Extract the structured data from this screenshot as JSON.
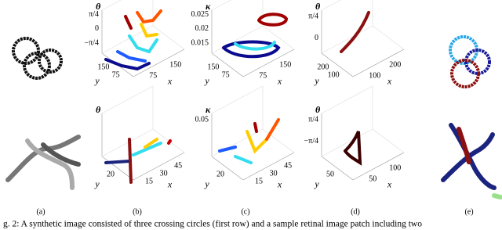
{
  "figure": {
    "plots": [
      {
        "z_label": "θ",
        "z_ticks": [
          "π/4",
          "0",
          "−π/4"
        ],
        "x_label": "x",
        "x_ticks": [
          "75",
          "150"
        ],
        "y_label": "y",
        "y_ticks": [
          "150",
          "75"
        ]
      },
      {
        "z_label": "κ",
        "z_ticks": [
          "0.025",
          "0.02",
          "0.015"
        ],
        "x_label": "x",
        "x_ticks": [
          "75",
          "150"
        ],
        "y_label": "y",
        "y_ticks": [
          "150",
          "75"
        ]
      },
      {
        "z_label": "θ",
        "z_ticks": [
          "π/4",
          "0"
        ],
        "x_label": "x",
        "x_ticks": [
          "100",
          "200"
        ],
        "y_label": "y",
        "y_ticks": [
          "200",
          "100"
        ]
      },
      {
        "z_label": "θ",
        "x_label": "x",
        "x_ticks": [
          "15",
          "30",
          "45"
        ],
        "y_label": "y",
        "y_ticks": [
          "20"
        ]
      },
      {
        "z_label": "κ",
        "z_ticks": [
          "0.05"
        ],
        "x_label": "x",
        "x_ticks": [
          "15",
          "30",
          "45"
        ],
        "y_label": "y",
        "y_ticks": [
          "20"
        ]
      },
      {
        "z_label": "θ",
        "z_ticks": [
          "π/4",
          "−π/4"
        ],
        "x_label": "x",
        "x_ticks": [
          "50",
          "100"
        ],
        "y_label": "y",
        "y_ticks": [
          "50"
        ]
      }
    ],
    "subfigure_labels": [
      "(a)",
      "(b)",
      "(c)",
      "(d)",
      "(e)"
    ],
    "caption": "g. 2: A synthetic image consisted of three crossing circles (first row) and a sample retinal image patch including two"
  }
}
